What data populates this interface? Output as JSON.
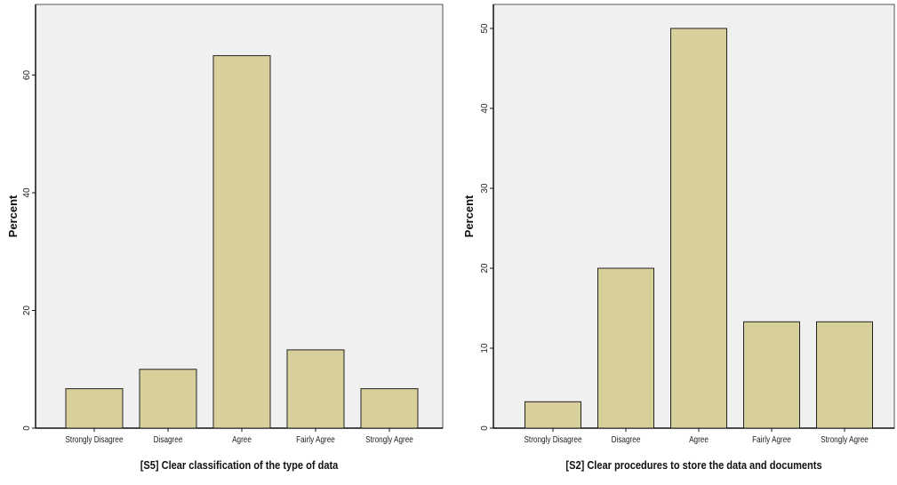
{
  "colors": {
    "plot_background": "#f0f0f0",
    "bar_fill": "#d7d09a",
    "bar_stroke": "#222222"
  },
  "chart_data": [
    {
      "type": "bar",
      "categories": [
        "Strongly Disagree",
        "Disagree",
        "Agree",
        "Fairly Agree",
        "Strongly Agree"
      ],
      "values": [
        6.7,
        10,
        63.3,
        13.3,
        6.7
      ],
      "title": "",
      "xlabel": "[S5] Clear classification of the type of data",
      "ylabel": "Percent",
      "ylim": [
        0,
        72
      ],
      "yticks": [
        0,
        20,
        40,
        60
      ],
      "grid": false,
      "legend": "none"
    },
    {
      "type": "bar",
      "categories": [
        "Strongly Disagree",
        "Disagree",
        "Agree",
        "Fairly Agree",
        "Strongly Agree"
      ],
      "values": [
        3.3,
        20,
        50,
        13.3,
        13.3
      ],
      "title": "",
      "xlabel": "[S2] Clear procedures to store the data and documents",
      "ylabel": "Percent",
      "ylim": [
        0,
        53
      ],
      "yticks": [
        0,
        10,
        20,
        30,
        40,
        50
      ],
      "grid": false,
      "legend": "none"
    }
  ]
}
